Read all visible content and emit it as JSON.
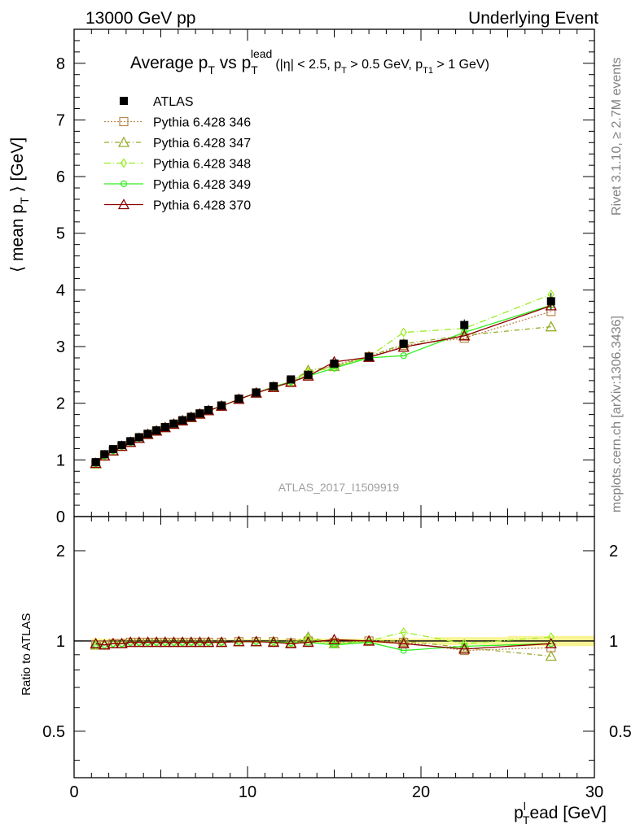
{
  "header": {
    "left": "13000 GeV pp",
    "right": "Underlying Event"
  },
  "side_labels": {
    "rivet": "Rivet 3.1.10, ≥ 2.7M events",
    "mcplots": "mcplots.cern.ch [arXiv:1306.3436]"
  },
  "analysis_id": "ATLAS_2017_I1509919",
  "colors": {
    "data": "#000000",
    "p346": "#b8864b",
    "p347": "#9aaa2b",
    "p348": "#99ee22",
    "p349": "#33ee22",
    "p370": "#8b0000",
    "band": "#f5f06a"
  },
  "chart_data": [
    {
      "type": "line",
      "panel": "main",
      "title_parts": {
        "main": "Average p",
        "sub1": "T",
        "mid": " vs p",
        "sub2": "T",
        "sup2": "lead",
        "cuts": "(|η| < 2.5, p",
        "cuts_sub1": "T",
        "cuts2": " > 0.5 GeV, p",
        "cuts_sub2": "T1",
        "cuts3": " > 1 GeV)"
      },
      "ylabel_parts": {
        "a": "⟨ mean p",
        "sub": "T",
        "b": " ⟩ [GeV]"
      },
      "xlim": [
        0,
        30
      ],
      "ylim": [
        0,
        8.6
      ],
      "yticks": [
        "0",
        "1",
        "2",
        "3",
        "4",
        "5",
        "6",
        "7",
        "8"
      ],
      "x": [
        1.25,
        1.75,
        2.25,
        2.75,
        3.25,
        3.75,
        4.25,
        4.75,
        5.25,
        5.75,
        6.25,
        6.75,
        7.25,
        7.75,
        8.5,
        9.5,
        10.5,
        11.5,
        12.5,
        13.5,
        15.0,
        17.0,
        19.0,
        22.5,
        27.5
      ],
      "series": [
        {
          "name": "ATLAS",
          "style": "data",
          "values": [
            0.96,
            1.1,
            1.19,
            1.26,
            1.33,
            1.4,
            1.46,
            1.52,
            1.58,
            1.64,
            1.7,
            1.76,
            1.82,
            1.88,
            1.96,
            2.08,
            2.19,
            2.3,
            2.42,
            2.5,
            2.7,
            2.82,
            3.05,
            3.38,
            3.8
          ],
          "errors": [
            0.02,
            0.02,
            0.02,
            0.02,
            0.02,
            0.02,
            0.02,
            0.02,
            0.02,
            0.02,
            0.02,
            0.02,
            0.02,
            0.02,
            0.02,
            0.03,
            0.03,
            0.03,
            0.04,
            0.05,
            0.05,
            0.05,
            0.06,
            0.1,
            0.15
          ]
        },
        {
          "name": "Pythia 6.428 346",
          "style": "p346",
          "values": [
            0.93,
            1.07,
            1.16,
            1.24,
            1.31,
            1.38,
            1.45,
            1.51,
            1.57,
            1.63,
            1.69,
            1.75,
            1.81,
            1.87,
            1.95,
            2.07,
            2.18,
            2.29,
            2.38,
            2.5,
            2.68,
            2.82,
            3.02,
            3.15,
            3.62
          ]
        },
        {
          "name": "Pythia 6.428 347",
          "style": "p347",
          "values": [
            0.93,
            1.07,
            1.16,
            1.24,
            1.31,
            1.38,
            1.45,
            1.51,
            1.57,
            1.63,
            1.69,
            1.75,
            1.81,
            1.87,
            1.95,
            2.07,
            2.18,
            2.29,
            2.38,
            2.58,
            2.65,
            2.82,
            3.05,
            3.2,
            3.35
          ]
        },
        {
          "name": "Pythia 6.428 348",
          "style": "p348",
          "values": [
            0.93,
            1.07,
            1.16,
            1.24,
            1.31,
            1.38,
            1.45,
            1.51,
            1.57,
            1.63,
            1.69,
            1.75,
            1.81,
            1.87,
            1.95,
            2.07,
            2.18,
            2.29,
            2.38,
            2.55,
            2.63,
            2.82,
            3.25,
            3.32,
            3.92
          ]
        },
        {
          "name": "Pythia 6.428 349",
          "style": "p349",
          "values": [
            0.93,
            1.07,
            1.16,
            1.24,
            1.31,
            1.38,
            1.45,
            1.51,
            1.57,
            1.63,
            1.69,
            1.75,
            1.81,
            1.87,
            1.95,
            2.07,
            2.18,
            2.29,
            2.38,
            2.48,
            2.62,
            2.8,
            2.84,
            3.25,
            3.73
          ]
        },
        {
          "name": "Pythia 6.428 370",
          "style": "p370",
          "values": [
            0.94,
            1.07,
            1.16,
            1.24,
            1.31,
            1.38,
            1.45,
            1.51,
            1.57,
            1.63,
            1.69,
            1.75,
            1.81,
            1.87,
            1.95,
            2.07,
            2.18,
            2.28,
            2.37,
            2.48,
            2.73,
            2.81,
            2.99,
            3.19,
            3.72
          ]
        }
      ]
    },
    {
      "type": "line",
      "panel": "ratio",
      "ylabel": "Ratio to ATLAS",
      "xlabel_parts": {
        "a": "p",
        "sup": "l",
        "sub": "T",
        "b": "ead [GeV]"
      },
      "xlim": [
        0,
        30
      ],
      "ylim": [
        0.35,
        2.6
      ],
      "log_y": true,
      "xticks": [
        "0",
        "10",
        "20",
        "30"
      ],
      "yticks": [
        "0.5",
        "1",
        "2"
      ],
      "ratios": {
        "Pythia 6.428 346": [
          0.97,
          0.97,
          0.98,
          0.98,
          0.99,
          0.99,
          0.99,
          0.99,
          0.99,
          0.99,
          0.99,
          0.99,
          0.99,
          0.99,
          0.99,
          0.995,
          0.995,
          0.995,
          0.985,
          1.0,
          0.99,
          1.0,
          0.99,
          0.93,
          0.95
        ],
        "Pythia 6.428 347": [
          0.97,
          0.97,
          0.98,
          0.98,
          0.99,
          0.99,
          0.99,
          0.99,
          0.99,
          0.99,
          0.99,
          0.99,
          0.99,
          0.99,
          0.99,
          0.995,
          0.995,
          0.995,
          0.985,
          1.03,
          0.98,
          1.0,
          1.0,
          0.95,
          0.89
        ],
        "Pythia 6.428 348": [
          0.97,
          0.97,
          0.98,
          0.98,
          0.99,
          0.99,
          0.99,
          0.99,
          0.99,
          0.99,
          0.99,
          0.99,
          0.99,
          0.99,
          0.99,
          0.995,
          0.995,
          0.995,
          0.985,
          1.02,
          0.98,
          1.0,
          1.07,
          0.98,
          1.03
        ],
        "Pythia 6.428 349": [
          0.97,
          0.97,
          0.98,
          0.98,
          0.99,
          0.99,
          0.99,
          0.99,
          0.99,
          0.99,
          0.99,
          0.99,
          0.99,
          0.99,
          0.99,
          0.995,
          0.995,
          0.995,
          0.985,
          0.99,
          0.97,
          0.99,
          0.93,
          0.96,
          0.98
        ],
        "Pythia 6.428 370": [
          0.98,
          0.97,
          0.98,
          0.98,
          0.99,
          0.99,
          0.99,
          0.99,
          0.99,
          0.99,
          0.99,
          0.99,
          0.99,
          0.99,
          0.99,
          0.995,
          0.995,
          0.99,
          0.98,
          0.99,
          1.01,
          1.0,
          0.98,
          0.94,
          0.98
        ]
      }
    }
  ]
}
